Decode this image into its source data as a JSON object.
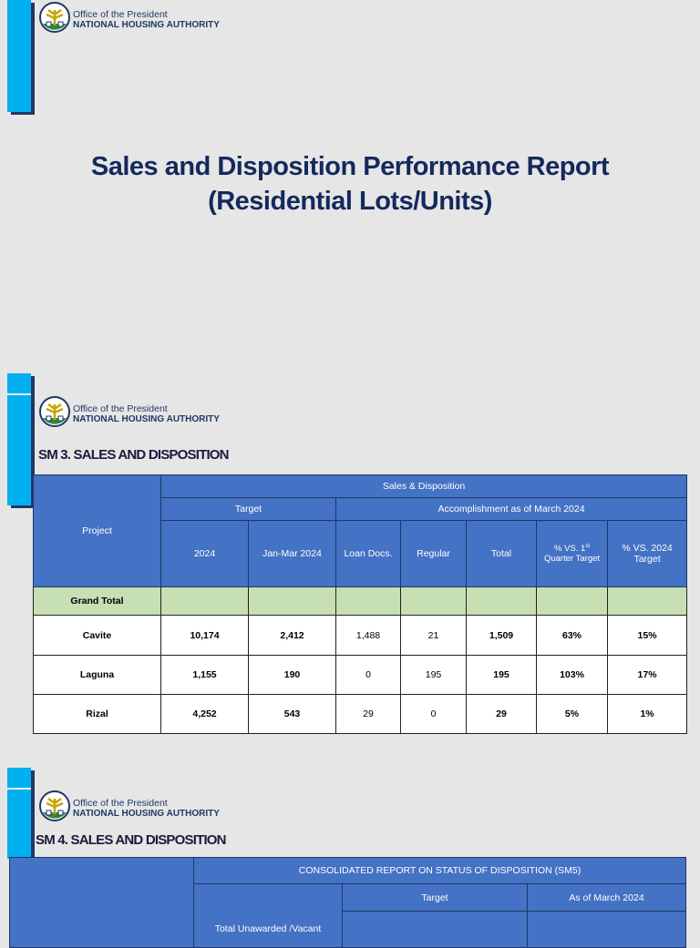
{
  "slide1": {
    "logo": {
      "line1": "Office of the President",
      "line2": "NATIONAL HOUSING AUTHORITY"
    },
    "title": [
      "Sales and Disposition Performance Report",
      "(Residential Lots/Units)"
    ]
  },
  "slide2": {
    "logo": {
      "line1": "Office of the President",
      "line2": "NATIONAL HOUSING AUTHORITY"
    },
    "heading": "SM 3. SALES AND DISPOSITION",
    "table": {
      "project": "Project",
      "group": "Sales & Disposition",
      "target": "Target",
      "accomplishment": "Accomplishment as of March 2024",
      "columns": [
        "2024",
        "Jan-Mar 2024",
        "Loan Docs.",
        "Regular",
        "Total",
        {
          "text": "% VS. 1",
          "sup": "st",
          "rest": "Quarter Target"
        },
        "% VS. 2024 Target"
      ],
      "grand_total": "Grand Total",
      "rows": [
        [
          "Cavite",
          "10,174",
          "2,412",
          "1,488",
          "21",
          "1,509",
          "63%",
          "15%"
        ],
        [
          "Laguna",
          "1,155",
          "190",
          "0",
          "195",
          "195",
          "103%",
          "17%"
        ],
        [
          "Rizal",
          "4,252",
          "543",
          "29",
          "0",
          "29",
          "5%",
          "1%"
        ]
      ]
    }
  },
  "slide3": {
    "logo": {
      "line1": "Office of the President",
      "line2": "NATIONAL HOUSING AUTHORITY"
    },
    "heading": "SM 4. SALES AND DISPOSITION",
    "table": {
      "group": "CONSOLIDATED REPORT ON STATUS OF DISPOSITION (SM5)",
      "target": "Target",
      "as_of": "As of March 2024",
      "unawarded": "Total Unawarded /Vacant"
    }
  }
}
